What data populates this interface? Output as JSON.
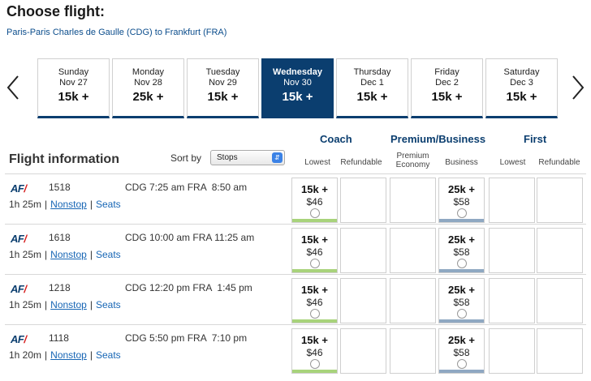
{
  "header": {
    "title": "Choose flight:",
    "route": "Paris-Paris Charles de Gaulle (CDG) to Frankfurt (FRA)"
  },
  "dates": [
    {
      "dow": "Sunday",
      "date": "Nov 27",
      "points": "15k +"
    },
    {
      "dow": "Monday",
      "date": "Nov 28",
      "points": "25k +"
    },
    {
      "dow": "Tuesday",
      "date": "Nov 29",
      "points": "15k +"
    },
    {
      "dow": "Wednesday",
      "date": "Nov 30",
      "points": "15k +"
    },
    {
      "dow": "Thursday",
      "date": "Dec 1",
      "points": "15k +"
    },
    {
      "dow": "Friday",
      "date": "Dec 2",
      "points": "15k +"
    },
    {
      "dow": "Saturday",
      "date": "Dec 3",
      "points": "15k +"
    }
  ],
  "cabins": {
    "coach": "Coach",
    "premium": "Premium/Business",
    "first": "First"
  },
  "subheaders": {
    "lowest": "Lowest",
    "refundable": "Refundable",
    "premium_economy_1": "Premium",
    "premium_economy_2": "Economy",
    "business": "Business",
    "first_lowest": "Lowest",
    "first_refundable": "Refundable"
  },
  "table": {
    "flight_info": "Flight information",
    "sort_label": "Sort by",
    "sort_value": "Stops"
  },
  "colors": {
    "brand": "#0b3e6f",
    "coach_bar": "#a8d37b",
    "business_bar": "#8fa8c2"
  },
  "flights": [
    {
      "airline": "AF",
      "number": "1518",
      "dep": "CDG 7:25 am",
      "arr": "FRA  8:50 am",
      "duration": "1h 25m",
      "stops": "Nonstop",
      "seats": "Seats",
      "coach_points": "15k +",
      "coach_cash": "$46",
      "business_points": "25k +",
      "business_cash": "$58"
    },
    {
      "airline": "AF",
      "number": "1618",
      "dep": "CDG 10:00 am",
      "arr": "FRA 11:25 am",
      "duration": "1h 25m",
      "stops": "Nonstop",
      "seats": "Seats",
      "coach_points": "15k +",
      "coach_cash": "$46",
      "business_points": "25k +",
      "business_cash": "$58"
    },
    {
      "airline": "AF",
      "number": "1218",
      "dep": "CDG 12:20 pm",
      "arr": "FRA  1:45 pm",
      "duration": "1h 25m",
      "stops": "Nonstop",
      "seats": "Seats",
      "coach_points": "15k +",
      "coach_cash": "$46",
      "business_points": "25k +",
      "business_cash": "$58"
    },
    {
      "airline": "AF",
      "number": "1118",
      "dep": "CDG 5:50 pm",
      "arr": "FRA  7:10 pm",
      "duration": "1h 20m",
      "stops": "Nonstop",
      "seats": "Seats",
      "coach_points": "15k +",
      "coach_cash": "$46",
      "business_points": "25k +",
      "business_cash": "$58"
    }
  ]
}
